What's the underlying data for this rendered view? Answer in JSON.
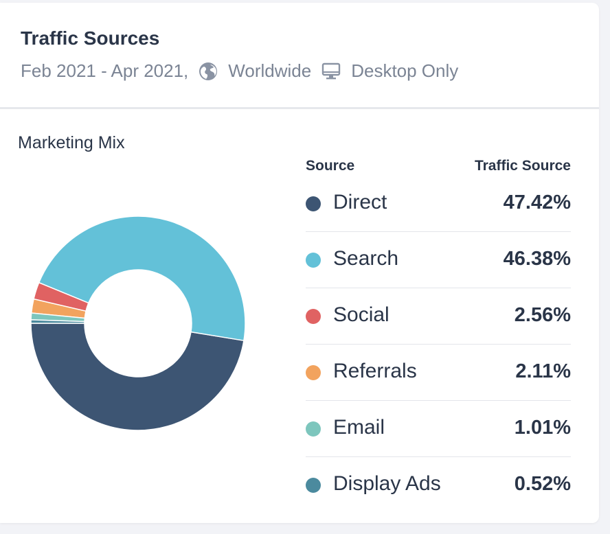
{
  "header": {
    "title": "Traffic Sources",
    "date_range": "Feb 2021 - Apr 2021,",
    "region_icon": "globe-icon",
    "region": "Worldwide",
    "device_icon": "desktop-icon",
    "device": "Desktop Only"
  },
  "table": {
    "col_source": "Source",
    "col_value": "Traffic Source"
  },
  "chart_data": {
    "type": "pie",
    "title": "Marketing Mix",
    "donut": true,
    "legend_placement": "right",
    "categories": [
      "Direct",
      "Search",
      "Social",
      "Referrals",
      "Email",
      "Display Ads"
    ],
    "values": [
      47.42,
      46.38,
      2.56,
      2.11,
      1.01,
      0.52
    ],
    "value_labels": [
      "47.42%",
      "46.38%",
      "2.56%",
      "2.11%",
      "1.01%",
      "0.52%"
    ],
    "colors": [
      "#3d5573",
      "#63c1d8",
      "#e06262",
      "#f2a35e",
      "#7dc6bd",
      "#4b8a9e"
    ]
  }
}
